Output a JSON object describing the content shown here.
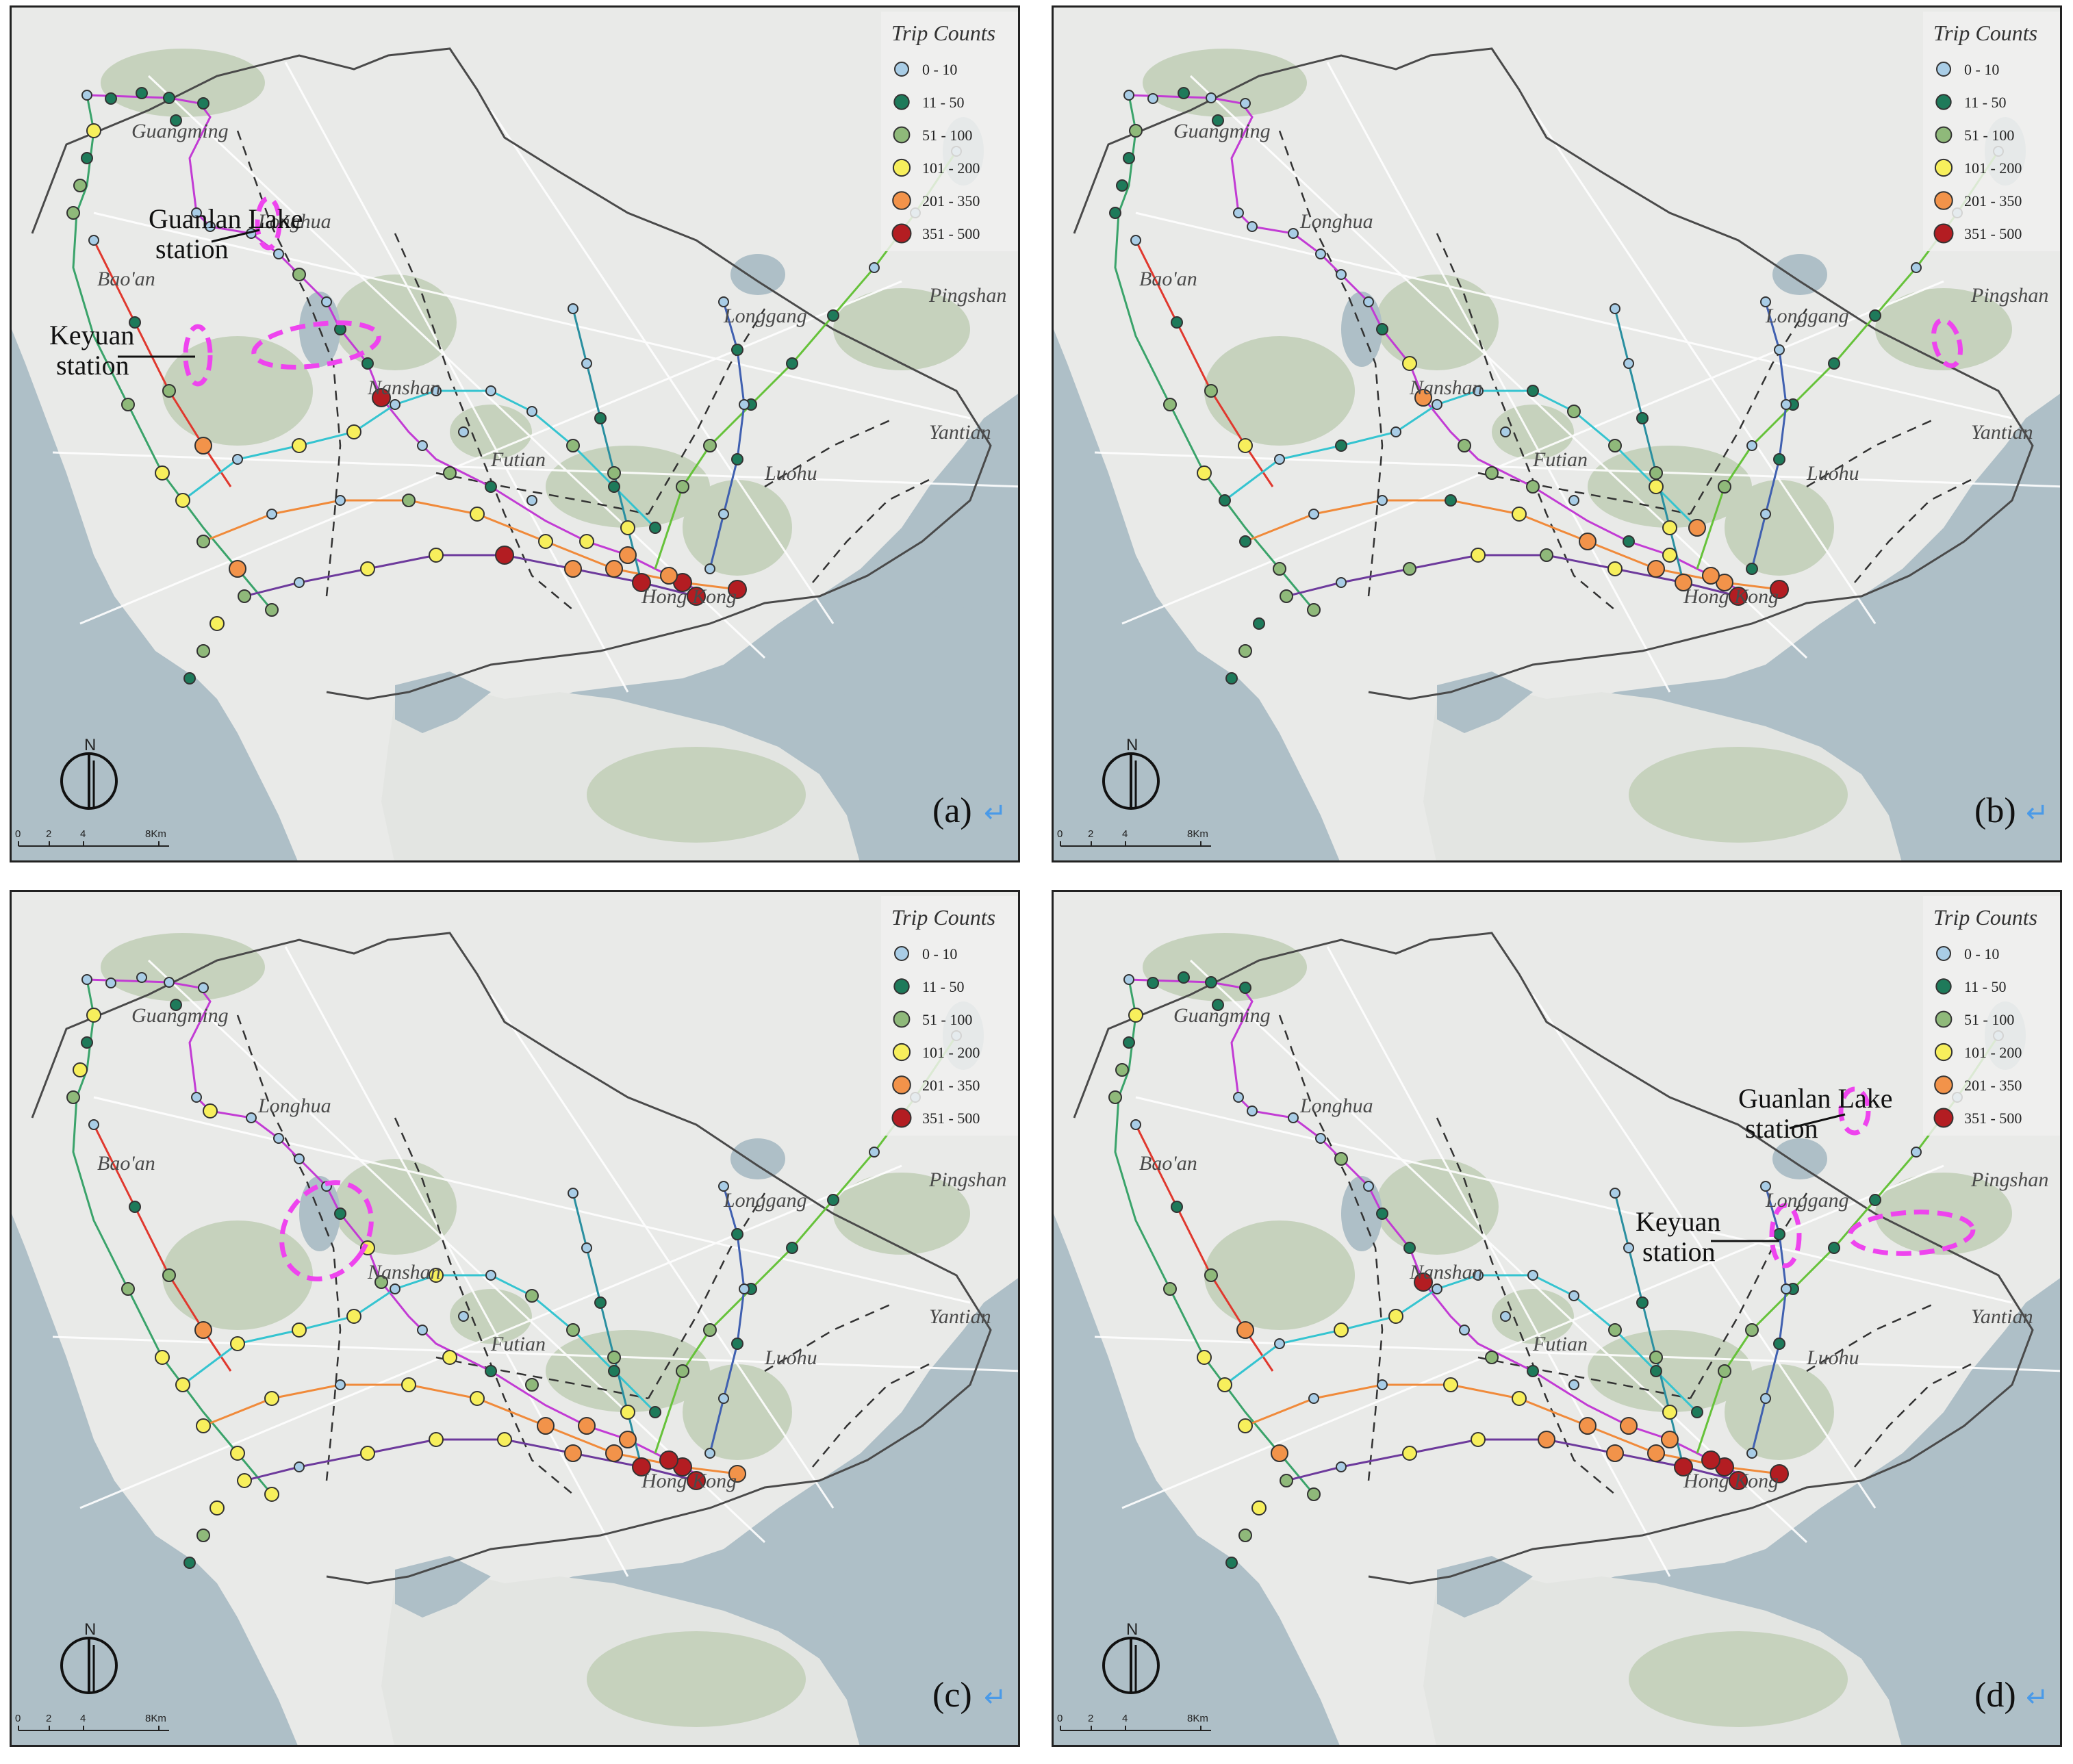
{
  "legend": {
    "title": "Trip Counts",
    "classes": [
      {
        "label": "0 - 10",
        "color": "#a9cde6"
      },
      {
        "label": "11 - 50",
        "color": "#1e7a5a"
      },
      {
        "label": "51 - 100",
        "color": "#8fb97a"
      },
      {
        "label": "101 - 200",
        "color": "#f7ef5c"
      },
      {
        "label": "201 - 350",
        "color": "#f2934a"
      },
      {
        "label": "351 - 500",
        "color": "#b31d22"
      }
    ]
  },
  "districts": [
    "Guangming",
    "Longhua",
    "Bao'an",
    "Longgang",
    "Pingshan",
    "Nanshan",
    "Futian",
    "Luohu",
    "Yantian",
    "Hong Kong"
  ],
  "scale_bar": {
    "ticks": [
      "0",
      "2",
      "4",
      "8Km"
    ]
  },
  "north_label": "N",
  "return_glyph": "↵",
  "highlight_color": "#ee44ee",
  "panels": [
    {
      "label": "(a)",
      "callouts": [
        {
          "line1": "Guanlan Lake",
          "line2": "station"
        },
        {
          "line1": "Keyuan",
          "line2": "station"
        }
      ]
    },
    {
      "label": "(b)",
      "callouts": []
    },
    {
      "label": "(c)",
      "callouts": []
    },
    {
      "label": "(d)",
      "callouts": [
        {
          "line1": "Guanlan Lake",
          "line2": "station"
        },
        {
          "line1": "Keyuan",
          "line2": "station"
        }
      ]
    }
  ]
}
